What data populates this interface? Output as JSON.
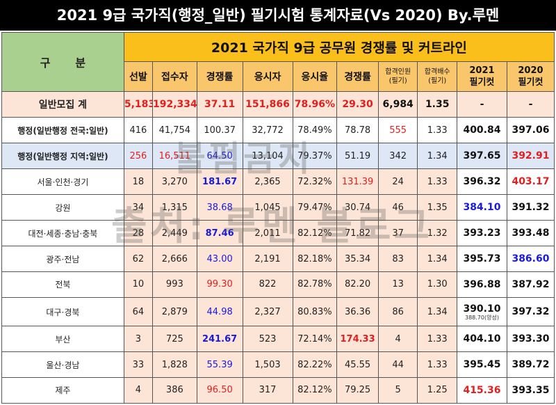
{
  "title": "2021 9급 국가직(행정_일반) 필기시험 통계자료(Vs 2020) By.루멘",
  "header": {
    "gubun": [
      "구",
      "분"
    ],
    "banner": "2021 국가직 9급 공무원 경쟁률 및 커트라인",
    "cols": [
      "선발",
      "접수자",
      "경쟁률",
      "응시자",
      "응시율",
      "경쟁률"
    ],
    "pass_count": [
      "합격인원",
      "(필기)"
    ],
    "pass_ratio": [
      "합격배수",
      "(필기)"
    ],
    "cut2021": [
      "2021",
      "필기컷"
    ],
    "cut2020": [
      "2020",
      "필기컷"
    ]
  },
  "total": {
    "label": "일반모집 계",
    "values": [
      "5,183",
      "192,334",
      "37.11",
      "151,866",
      "78.96%",
      "29.30",
      "6,984",
      "1.35",
      "-",
      "-"
    ]
  },
  "main_rows": [
    {
      "label": "행정(일반행정 전국:일반)",
      "values": [
        "416",
        "41,754",
        "100.37",
        "32,772",
        "78.49%",
        "78.78",
        "555",
        "1.33",
        "400.84",
        "397.06"
      ]
    },
    {
      "label": "행정(일반행정 지역:일반)",
      "values": [
        "256",
        "16,511",
        "64.50",
        "13,104",
        "79.37%",
        "51.19",
        "342",
        "1.34",
        "397.65",
        "392.91"
      ]
    }
  ],
  "regions": [
    {
      "label": "서울·인천·경기",
      "values": [
        "18",
        "3,270",
        "181.67",
        "2,365",
        "72.32%",
        "131.39",
        "24",
        "1.33",
        "396.32",
        "403.17"
      ]
    },
    {
      "label": "강원",
      "values": [
        "34",
        "1,315",
        "38.68",
        "1,045",
        "79.47%",
        "30.74",
        "46",
        "1.35",
        "384.10",
        "391.32"
      ]
    },
    {
      "label": "대전·세종·충남·충북",
      "values": [
        "28",
        "2,449",
        "87.46",
        "2,011",
        "82.12%",
        "71.82",
        "37",
        "1.32",
        "393.23",
        "393.48"
      ]
    },
    {
      "label": "광주·전남",
      "values": [
        "62",
        "2,666",
        "43.00",
        "2,191",
        "82.18%",
        "35.34",
        "83",
        "1.34",
        "395.73",
        "386.60"
      ]
    },
    {
      "label": "전북",
      "values": [
        "10",
        "993",
        "99.30",
        "822",
        "82.78%",
        "82.20",
        "13",
        "1.30",
        "396.88",
        "387.92"
      ]
    },
    {
      "label": "대구·경북",
      "values": [
        "64",
        "2,879",
        "44.98",
        "2,327",
        "80.83%",
        "36.36",
        "86",
        "1.34",
        "390.10",
        "397.32"
      ],
      "note": "388.70(양성)"
    },
    {
      "label": "부산",
      "values": [
        "3",
        "725",
        "241.67",
        "523",
        "72.14%",
        "174.33",
        "4",
        "1.33",
        "404.10",
        "393.30"
      ]
    },
    {
      "label": "울산·경남",
      "values": [
        "33",
        "1,828",
        "55.39",
        "1,503",
        "82.22%",
        "45.55",
        "44",
        "1.33",
        "395.45",
        "389.72"
      ]
    },
    {
      "label": "제주",
      "values": [
        "4",
        "386",
        "96.50",
        "317",
        "82.12%",
        "79.25",
        "5",
        "1.25",
        "415.36",
        "393.35"
      ]
    }
  ],
  "watermark": [
    "불펌금지",
    "출처: 루멘 블로그"
  ]
}
